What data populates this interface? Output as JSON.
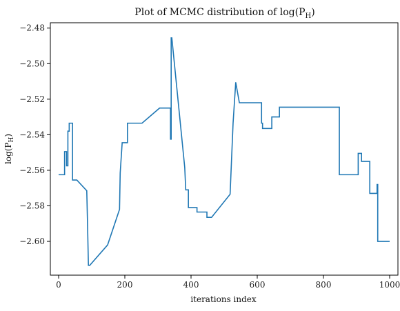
{
  "chart_data": {
    "type": "line",
    "title": "Plot of MCMC distribution of log(P_H)",
    "xlabel": "iterations index",
    "ylabel": "log(P_H)",
    "xlim": [
      -25,
      1025
    ],
    "ylim": [
      -2.619,
      -2.477
    ],
    "xticks": [
      0,
      200,
      400,
      600,
      800,
      1000
    ],
    "yticks": [
      -2.6,
      -2.58,
      -2.56,
      -2.54,
      -2.52,
      -2.5,
      -2.48
    ],
    "xtick_labels": [
      "0",
      "200",
      "400",
      "600",
      "800",
      "1000"
    ],
    "ytick_labels": [
      "−2.60",
      "−2.58",
      "−2.56",
      "−2.54",
      "−2.52",
      "−2.50",
      "−2.48"
    ],
    "series": [
      {
        "color": "#1f77b4",
        "x": [
          0,
          18,
          18,
          24,
          24,
          28,
          28,
          32,
          32,
          42,
          42,
          55,
          55,
          85,
          85,
          87,
          87,
          90,
          90,
          94,
          94,
          148,
          148,
          184,
          184,
          186,
          186,
          192,
          192,
          208,
          208,
          252,
          252,
          305,
          305,
          338,
          338,
          340,
          340,
          342,
          342,
          381,
          381,
          384,
          384,
          392,
          392,
          418,
          418,
          448,
          448,
          462,
          462,
          518,
          518,
          527,
          527,
          535,
          535,
          546,
          546,
          613,
          613,
          616,
          616,
          644,
          644,
          667,
          667,
          848,
          848,
          905,
          905,
          915,
          915,
          940,
          940,
          962,
          962,
          964,
          964,
          1000
        ],
        "y": [
          -2.5625,
          -2.5625,
          -2.5495,
          -2.5495,
          -2.5575,
          -2.5575,
          -2.538,
          -2.538,
          -2.5335,
          -2.5335,
          -2.5655,
          -2.5655,
          -2.5655,
          -2.5715,
          -2.5715,
          -2.587,
          -2.587,
          -2.6135,
          -2.6135,
          -2.6135,
          -2.6135,
          -2.602,
          -2.602,
          -2.582,
          -2.582,
          -2.5615,
          -2.5615,
          -2.5445,
          -2.5445,
          -2.5445,
          -2.5335,
          -2.5335,
          -2.5335,
          -2.525,
          -2.525,
          -2.525,
          -2.5425,
          -2.5425,
          -2.4855,
          -2.4855,
          -2.4855,
          -2.5585,
          -2.5585,
          -2.571,
          -2.571,
          -2.571,
          -2.581,
          -2.581,
          -2.5835,
          -2.5835,
          -2.5865,
          -2.5865,
          -2.5865,
          -2.5735,
          -2.5735,
          -2.5335,
          -2.5335,
          -2.5105,
          -2.5105,
          -2.522,
          -2.522,
          -2.522,
          -2.5335,
          -2.5335,
          -2.5365,
          -2.5365,
          -2.53,
          -2.53,
          -2.5245,
          -2.5245,
          -2.5625,
          -2.5625,
          -2.5505,
          -2.5505,
          -2.555,
          -2.555,
          -2.573,
          -2.573,
          -2.568,
          -2.568,
          -2.6,
          -2.6
        ]
      }
    ]
  }
}
